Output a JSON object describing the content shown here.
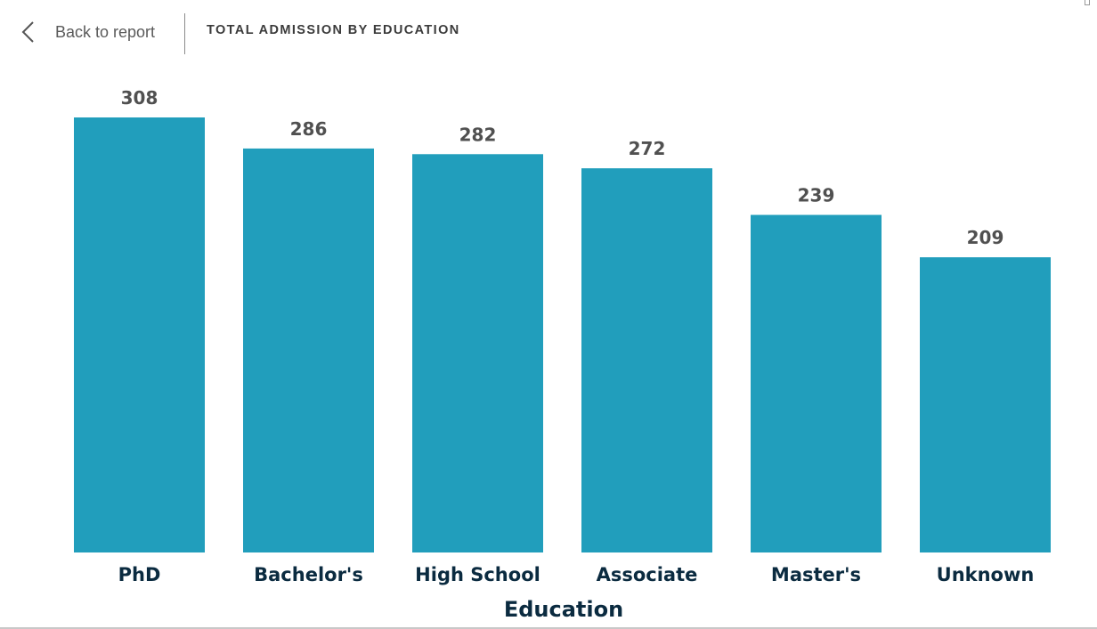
{
  "header": {
    "back_label": "Back to report",
    "title": "TOTAL ADMISSION BY EDUCATION"
  },
  "colors": {
    "bar": "#219EBC",
    "data_label": "#505050",
    "category_label": "#0B2B40",
    "axis_title": "#0B2B40"
  },
  "chart_data": {
    "type": "bar",
    "categories": [
      "PhD",
      "Bachelor's",
      "High School",
      "Associate",
      "Master's",
      "Unknown"
    ],
    "values": [
      308,
      286,
      282,
      272,
      239,
      209
    ],
    "title": "TOTAL ADMISSION BY EDUCATION",
    "xlabel": "Education",
    "ylabel": "",
    "ylim": [
      0,
      308
    ],
    "grid": false,
    "legend": "none"
  }
}
